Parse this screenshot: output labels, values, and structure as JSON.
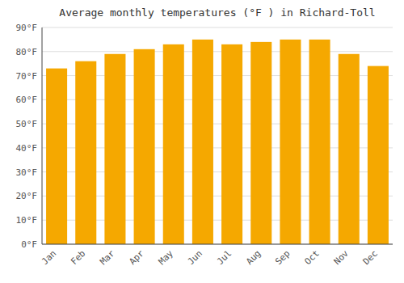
{
  "chart_data": {
    "type": "bar",
    "title": "Average monthly temperatures (°F ) in Richard-Toll",
    "categories": [
      "Jan",
      "Feb",
      "Mar",
      "Apr",
      "May",
      "Jun",
      "Jul",
      "Aug",
      "Sep",
      "Oct",
      "Nov",
      "Dec"
    ],
    "values": [
      73,
      76,
      79,
      81,
      83,
      85,
      83,
      84,
      85,
      85,
      79,
      74
    ],
    "color": "#F5A800",
    "ylim": [
      0,
      90
    ],
    "yticks": [
      {
        "value": 0,
        "label": "0°F"
      },
      {
        "value": 10,
        "label": "10°F"
      },
      {
        "value": 20,
        "label": "20°F"
      },
      {
        "value": 30,
        "label": "30°F"
      },
      {
        "value": 40,
        "label": "40°F"
      },
      {
        "value": 50,
        "label": "50°F"
      },
      {
        "value": 60,
        "label": "60°F"
      },
      {
        "value": 70,
        "label": "70°F"
      },
      {
        "value": 80,
        "label": "80°F"
      },
      {
        "value": 90,
        "label": "90°F"
      }
    ],
    "grid": true
  }
}
